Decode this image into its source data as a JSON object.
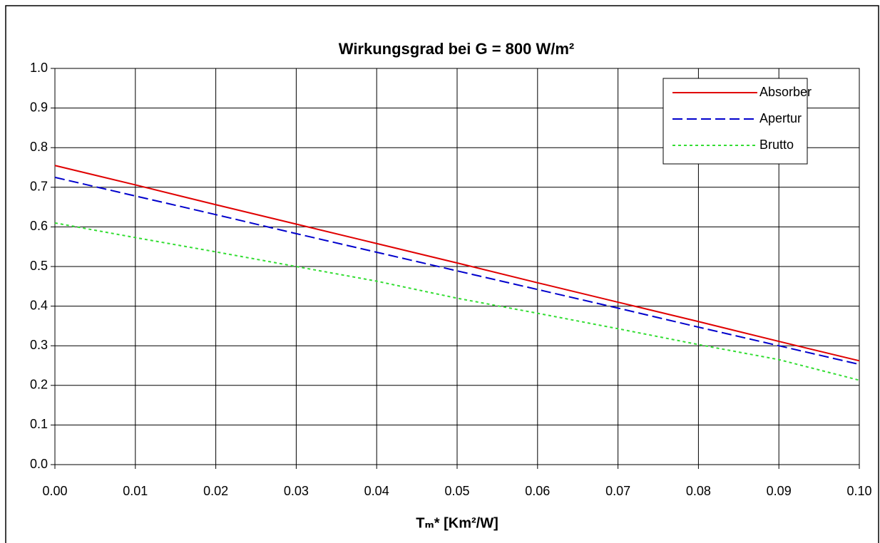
{
  "chart_data": {
    "type": "line",
    "title": "Wirkungsgrad bei G = 800 W/m²",
    "x_label": "Tₘ* [Km²/W]",
    "x": [
      0,
      0.01,
      0.02,
      0.03,
      0.04,
      0.05,
      0.06,
      0.07,
      0.08,
      0.09,
      0.1
    ],
    "series": [
      {
        "name": "Absorber",
        "color": "#e00000",
        "dash": "solid",
        "values": [
          0.755,
          0.706,
          0.656,
          0.607,
          0.558,
          0.509,
          0.459,
          0.41,
          0.361,
          0.311,
          0.262
        ]
      },
      {
        "name": "Apertur",
        "color": "#0000cc",
        "dash": "dashed",
        "values": [
          0.725,
          0.678,
          0.631,
          0.583,
          0.536,
          0.489,
          0.442,
          0.395,
          0.347,
          0.3,
          0.253
        ]
      },
      {
        "name": "Brutto",
        "color": "#33dd33",
        "dash": "dotted",
        "values": [
          0.61,
          0.573,
          0.537,
          0.5,
          0.463,
          0.42,
          0.382,
          0.343,
          0.303,
          0.265,
          0.213
        ]
      }
    ],
    "xlim": [
      0,
      0.1
    ],
    "xticks": [
      {
        "value": 0,
        "label": "0.00"
      },
      0.01,
      0.02,
      0.03,
      0.04,
      0.05,
      0.06,
      0.07,
      0.08,
      0.09,
      {
        "value": 0.1,
        "label": "0.10"
      }
    ],
    "ylim": [
      0,
      1
    ],
    "yticks": [
      {
        "value": 0,
        "label": "0.0"
      },
      0.1,
      0.2,
      0.3,
      0.4,
      0.5,
      0.6,
      0.7,
      0.8,
      0.9,
      {
        "value": 1,
        "label": "1.0"
      }
    ],
    "grid": true,
    "legend": "upper right"
  }
}
